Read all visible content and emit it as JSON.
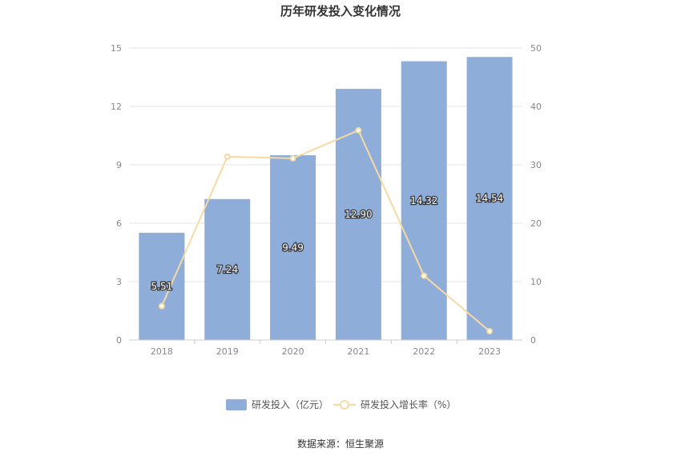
{
  "chart_data": {
    "type": "bar",
    "title": "历年研发投入变化情况",
    "categories": [
      "2018",
      "2019",
      "2020",
      "2021",
      "2022",
      "2023"
    ],
    "series": [
      {
        "name": "研发投入（亿元）",
        "type": "bar",
        "axis": "left",
        "values": [
          5.51,
          7.24,
          9.49,
          12.9,
          14.32,
          14.54
        ],
        "value_labels": [
          "5.51",
          "7.24",
          "9.49",
          "12.90",
          "14.32",
          "14.54"
        ],
        "color": "#8eadd9"
      },
      {
        "name": "研发投入增长率（%）",
        "type": "line",
        "axis": "right",
        "values": [
          5.8,
          31.4,
          31.1,
          35.9,
          11.0,
          1.5
        ],
        "color": "#f7d9a3"
      }
    ],
    "y_left": {
      "min": 0,
      "max": 15,
      "ticks": [
        "0",
        "3",
        "6",
        "9",
        "12",
        "15"
      ]
    },
    "y_right": {
      "min": 0,
      "max": 50,
      "ticks": [
        "0",
        "10",
        "20",
        "30",
        "40",
        "50"
      ]
    },
    "grid": true,
    "legend_position": "bottom-center"
  },
  "source_text": "数据来源：恒生聚源"
}
